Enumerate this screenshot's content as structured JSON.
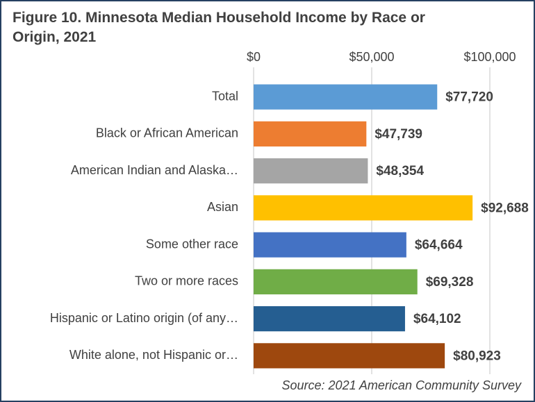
{
  "chart_data": {
    "type": "barh",
    "title": "Figure 10. Minnesota Median Household Income by Race or Origin, 2021",
    "categories": [
      "Total",
      "Black or African American",
      "American Indian and Alaska…",
      "Asian",
      "Some other race",
      "Two or more races",
      "Hispanic or Latino origin (of any…",
      "White alone, not Hispanic or…"
    ],
    "values": [
      77720,
      47739,
      48354,
      92688,
      64664,
      69328,
      64102,
      80923
    ],
    "value_labels": [
      "$77,720",
      "$47,739",
      "$48,354",
      "$92,688",
      "$64,664",
      "$69,328",
      "$64,102",
      "$80,923"
    ],
    "colors": [
      "#5b9bd5",
      "#ed7d31",
      "#a5a5a5",
      "#ffc000",
      "#4472c4",
      "#70ad47",
      "#255e91",
      "#9e480e"
    ],
    "xlim": [
      0,
      100000
    ],
    "xticks": [
      {
        "value": 0,
        "label": "$0"
      },
      {
        "value": 50000,
        "label": "$50,000"
      },
      {
        "value": 100000,
        "label": "$100,000"
      }
    ],
    "grid": true,
    "source": "Source: 2021 American Community Survey"
  }
}
